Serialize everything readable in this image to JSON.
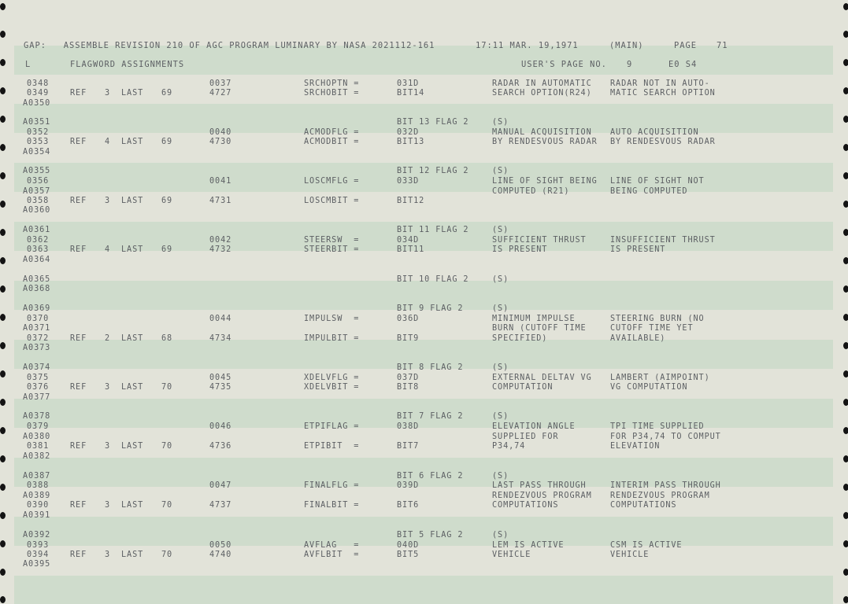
{
  "header": {
    "program": "GAP:   ASSEMBLE REVISION 210 OF AGC PROGRAM LUMINARY BY NASA 2021112-161",
    "time": "17:11 MAR. 19,1971",
    "module": "(MAIN)",
    "page_label": "PAGE",
    "page_number": "71"
  },
  "subheader": {
    "left": "L",
    "title": "FLAGWORD ASSIGNMENTS",
    "users_page_label": "USER'S PAGE NO.",
    "users_page_number": "9",
    "eo": "E0 S4"
  },
  "listing": [
    {
      "line": "0348",
      "ref": "",
      "n": "",
      "last": "",
      "yr": "",
      "addr": "0037",
      "sym": "SRCHOPTN =",
      "val": "031D",
      "d1": "RADAR IN AUTOMATIC",
      "d2": "RADAR NOT IN AUTO-"
    },
    {
      "line": "0349",
      "ref": "REF",
      "n": "3",
      "last": "LAST",
      "yr": "69",
      "addr": "4727",
      "sym": "SRCHOBIT =",
      "val": "BIT14",
      "d1": "SEARCH OPTION(R24)",
      "d2": "MATIC SEARCH OPTION"
    },
    {
      "line": "A0350",
      "ref": "",
      "n": "",
      "last": "",
      "yr": "",
      "addr": "",
      "sym": "",
      "val": "",
      "d1": "",
      "d2": ""
    },
    {
      "line": "A0351",
      "ref": "",
      "n": "",
      "last": "",
      "yr": "",
      "addr": "",
      "sym": "",
      "val": "BIT 13 FLAG 2",
      "d1": "(S)",
      "d2": ""
    },
    {
      "line": "0352",
      "ref": "",
      "n": "",
      "last": "",
      "yr": "",
      "addr": "0040",
      "sym": "ACMODFLG =",
      "val": "032D",
      "d1": "MANUAL ACQUISITION",
      "d2": "AUTO ACQUISITION"
    },
    {
      "line": "0353",
      "ref": "REF",
      "n": "4",
      "last": "LAST",
      "yr": "69",
      "addr": "4730",
      "sym": "ACMODBIT =",
      "val": "BIT13",
      "d1": "BY RENDESVOUS RADAR",
      "d2": "BY RENDESVOUS RADAR"
    },
    {
      "line": "A0354",
      "ref": "",
      "n": "",
      "last": "",
      "yr": "",
      "addr": "",
      "sym": "",
      "val": "",
      "d1": "",
      "d2": ""
    },
    {
      "line": "A0355",
      "ref": "",
      "n": "",
      "last": "",
      "yr": "",
      "addr": "",
      "sym": "",
      "val": "BIT 12 FLAG 2",
      "d1": "(S)",
      "d2": ""
    },
    {
      "line": "0356",
      "ref": "",
      "n": "",
      "last": "",
      "yr": "",
      "addr": "0041",
      "sym": "LOSCMFLG =",
      "val": "033D",
      "d1": "LINE OF SIGHT BEING",
      "d2": "LINE OF SIGHT NOT"
    },
    {
      "line": "A0357",
      "ref": "",
      "n": "",
      "last": "",
      "yr": "",
      "addr": "",
      "sym": "",
      "val": "",
      "d1": "COMPUTED (R21)",
      "d2": "BEING COMPUTED"
    },
    {
      "line": "0358",
      "ref": "REF",
      "n": "3",
      "last": "LAST",
      "yr": "69",
      "addr": "4731",
      "sym": "LOSCMBIT =",
      "val": "BIT12",
      "d1": "",
      "d2": ""
    },
    {
      "line": "A0360",
      "ref": "",
      "n": "",
      "last": "",
      "yr": "",
      "addr": "",
      "sym": "",
      "val": "",
      "d1": "",
      "d2": ""
    },
    {
      "line": "A0361",
      "ref": "",
      "n": "",
      "last": "",
      "yr": "",
      "addr": "",
      "sym": "",
      "val": "BIT 11 FLAG 2",
      "d1": "(S)",
      "d2": ""
    },
    {
      "line": "0362",
      "ref": "",
      "n": "",
      "last": "",
      "yr": "",
      "addr": "0042",
      "sym": "STEERSW  =",
      "val": "034D",
      "d1": "SUFFICIENT THRUST",
      "d2": "INSUFFICIENT THRUST"
    },
    {
      "line": "0363",
      "ref": "REF",
      "n": "4",
      "last": "LAST",
      "yr": "69",
      "addr": "4732",
      "sym": "STEERBIT =",
      "val": "BIT11",
      "d1": "IS PRESENT",
      "d2": "IS PRESENT"
    },
    {
      "line": "A0364",
      "ref": "",
      "n": "",
      "last": "",
      "yr": "",
      "addr": "",
      "sym": "",
      "val": "",
      "d1": "",
      "d2": ""
    },
    {
      "line": "A0365",
      "ref": "",
      "n": "",
      "last": "",
      "yr": "",
      "addr": "",
      "sym": "",
      "val": "BIT 10 FLAG 2",
      "d1": "(S)",
      "d2": ""
    },
    {
      "line": "A0368",
      "ref": "",
      "n": "",
      "last": "",
      "yr": "",
      "addr": "",
      "sym": "",
      "val": "",
      "d1": "",
      "d2": ""
    },
    {
      "line": "A0369",
      "ref": "",
      "n": "",
      "last": "",
      "yr": "",
      "addr": "",
      "sym": "",
      "val": "BIT 9 FLAG 2",
      "d1": "(S)",
      "d2": ""
    },
    {
      "line": "0370",
      "ref": "",
      "n": "",
      "last": "",
      "yr": "",
      "addr": "0044",
      "sym": "IMPULSW  =",
      "val": "036D",
      "d1": "MINIMUM IMPULSE",
      "d2": "STEERING BURN (NO"
    },
    {
      "line": "A0371",
      "ref": "",
      "n": "",
      "last": "",
      "yr": "",
      "addr": "",
      "sym": "",
      "val": "",
      "d1": "BURN (CUTOFF TIME",
      "d2": "CUTOFF TIME YET"
    },
    {
      "line": "0372",
      "ref": "REF",
      "n": "2",
      "last": "LAST",
      "yr": "68",
      "addr": "4734",
      "sym": "IMPULBIT =",
      "val": "BIT9",
      "d1": "SPECIFIED)",
      "d2": "AVAILABLE)"
    },
    {
      "line": "A0373",
      "ref": "",
      "n": "",
      "last": "",
      "yr": "",
      "addr": "",
      "sym": "",
      "val": "",
      "d1": "",
      "d2": ""
    },
    {
      "line": "A0374",
      "ref": "",
      "n": "",
      "last": "",
      "yr": "",
      "addr": "",
      "sym": "",
      "val": "BIT 8 FLAG 2",
      "d1": "(S)",
      "d2": ""
    },
    {
      "line": "0375",
      "ref": "",
      "n": "",
      "last": "",
      "yr": "",
      "addr": "0045",
      "sym": "XDELVFLG =",
      "val": "037D",
      "d1": "EXTERNAL DELTAV VG",
      "d2": "LAMBERT (AIMPOINT)"
    },
    {
      "line": "0376",
      "ref": "REF",
      "n": "3",
      "last": "LAST",
      "yr": "70",
      "addr": "4735",
      "sym": "XDELVBIT =",
      "val": "BIT8",
      "d1": "COMPUTATION",
      "d2": "VG COMPUTATION"
    },
    {
      "line": "A0377",
      "ref": "",
      "n": "",
      "last": "",
      "yr": "",
      "addr": "",
      "sym": "",
      "val": "",
      "d1": "",
      "d2": ""
    },
    {
      "line": "A0378",
      "ref": "",
      "n": "",
      "last": "",
      "yr": "",
      "addr": "",
      "sym": "",
      "val": "BIT 7 FLAG 2",
      "d1": "(S)",
      "d2": ""
    },
    {
      "line": "0379",
      "ref": "",
      "n": "",
      "last": "",
      "yr": "",
      "addr": "0046",
      "sym": "ETPIFLAG =",
      "val": "038D",
      "d1": "ELEVATION ANGLE",
      "d2": "TPI TIME SUPPLIED"
    },
    {
      "line": "A0380",
      "ref": "",
      "n": "",
      "last": "",
      "yr": "",
      "addr": "",
      "sym": "",
      "val": "",
      "d1": "SUPPLIED FOR",
      "d2": "FOR P34,74 TO COMPUT"
    },
    {
      "line": "0381",
      "ref": "REF",
      "n": "3",
      "last": "LAST",
      "yr": "70",
      "addr": "4736",
      "sym": "ETPIBIT  =",
      "val": "BIT7",
      "d1": "P34,74",
      "d2": "ELEVATION"
    },
    {
      "line": "A0382",
      "ref": "",
      "n": "",
      "last": "",
      "yr": "",
      "addr": "",
      "sym": "",
      "val": "",
      "d1": "",
      "d2": ""
    },
    {
      "line": "A0387",
      "ref": "",
      "n": "",
      "last": "",
      "yr": "",
      "addr": "",
      "sym": "",
      "val": "BIT 6 FLAG 2",
      "d1": "(S)",
      "d2": ""
    },
    {
      "line": "0388",
      "ref": "",
      "n": "",
      "last": "",
      "yr": "",
      "addr": "0047",
      "sym": "FINALFLG =",
      "val": "039D",
      "d1": "LAST PASS THROUGH",
      "d2": "INTERIM PASS THROUGH"
    },
    {
      "line": "A0389",
      "ref": "",
      "n": "",
      "last": "",
      "yr": "",
      "addr": "",
      "sym": "",
      "val": "",
      "d1": "RENDEZVOUS PROGRAM",
      "d2": "RENDEZVOUS PROGRAM"
    },
    {
      "line": "0390",
      "ref": "REF",
      "n": "3",
      "last": "LAST",
      "yr": "70",
      "addr": "4737",
      "sym": "FINALBIT =",
      "val": "BIT6",
      "d1": "COMPUTATIONS",
      "d2": "COMPUTATIONS"
    },
    {
      "line": "A0391",
      "ref": "",
      "n": "",
      "last": "",
      "yr": "",
      "addr": "",
      "sym": "",
      "val": "",
      "d1": "",
      "d2": ""
    },
    {
      "line": "A0392",
      "ref": "",
      "n": "",
      "last": "",
      "yr": "",
      "addr": "",
      "sym": "",
      "val": "BIT 5 FLAG 2",
      "d1": "(S)",
      "d2": ""
    },
    {
      "line": "0393",
      "ref": "",
      "n": "",
      "last": "",
      "yr": "",
      "addr": "0050",
      "sym": "AVFLAG   =",
      "val": "040D",
      "d1": "LEM IS ACTIVE",
      "d2": "CSM IS ACTIVE"
    },
    {
      "line": "0394",
      "ref": "REF",
      "n": "3",
      "last": "LAST",
      "yr": "70",
      "addr": "4740",
      "sym": "AVFLBIT  =",
      "val": "BIT5",
      "d1": "VEHICLE",
      "d2": "VEHICLE"
    },
    {
      "line": "A0395",
      "ref": "",
      "n": "",
      "last": "",
      "yr": "",
      "addr": "",
      "sym": "",
      "val": "",
      "d1": "",
      "d2": ""
    }
  ]
}
